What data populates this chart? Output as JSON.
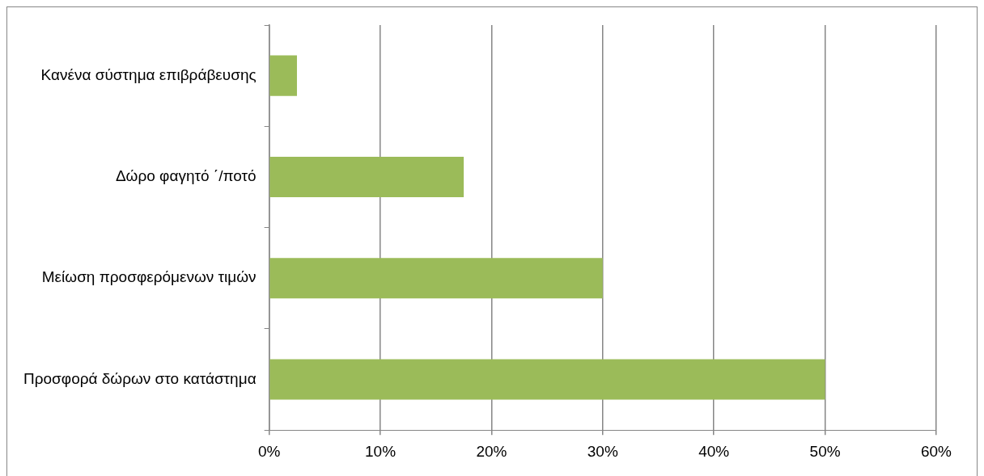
{
  "chart_data": {
    "type": "bar",
    "orientation": "horizontal",
    "categories": [
      "Κανένα σύστημα επιβράβευσης",
      "Δώρο φαγητό ΄/ποτό",
      "Μείωση προσφερόμενων τιμών",
      "Προσφορά δώρων στο κατάστημα"
    ],
    "values": [
      2.5,
      17.5,
      30,
      50
    ],
    "color": "#9bbb59",
    "xlim": [
      0,
      60
    ],
    "xticks": [
      {
        "value": 0,
        "label": "0%"
      },
      {
        "value": 10,
        "label": "10%"
      },
      {
        "value": 20,
        "label": "20%"
      },
      {
        "value": 30,
        "label": "30%"
      },
      {
        "value": 40,
        "label": "40%"
      },
      {
        "value": 50,
        "label": "50%"
      },
      {
        "value": 60,
        "label": "60%"
      }
    ],
    "grid": "x",
    "legend": false
  }
}
